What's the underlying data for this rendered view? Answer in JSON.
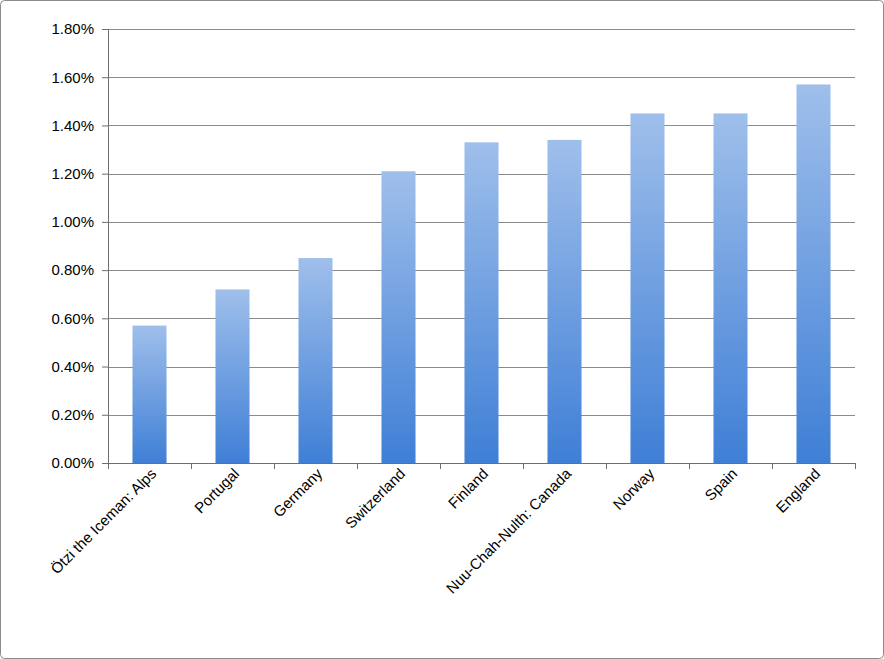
{
  "chart_data": {
    "type": "bar",
    "categories": [
      "Ötzi the Iceman: Alps",
      "Portugal",
      "Germany",
      "Switzerland",
      "Finland",
      "Nuu-Chah-Nulth: Canada",
      "Norway",
      "Spain",
      "England"
    ],
    "values": [
      0.57,
      0.72,
      0.85,
      1.21,
      1.33,
      1.34,
      1.45,
      1.45,
      1.57
    ],
    "color": "#3f7fd6",
    "ylim": [
      0,
      1.8
    ],
    "yticks": [
      {
        "value": 0,
        "label": "0.00%"
      },
      {
        "value": 0.2,
        "label": "0.20%"
      },
      {
        "value": 0.4,
        "label": "0.40%"
      },
      {
        "value": 0.6,
        "label": "0.60%"
      },
      {
        "value": 0.8,
        "label": "0.80%"
      },
      {
        "value": 1.0,
        "label": "1.00%"
      },
      {
        "value": 1.2,
        "label": "1.20%"
      },
      {
        "value": 1.4,
        "label": "1.40%"
      },
      {
        "value": 1.6,
        "label": "1.60%"
      },
      {
        "value": 1.8,
        "label": "1.80%"
      }
    ],
    "grid": true
  }
}
